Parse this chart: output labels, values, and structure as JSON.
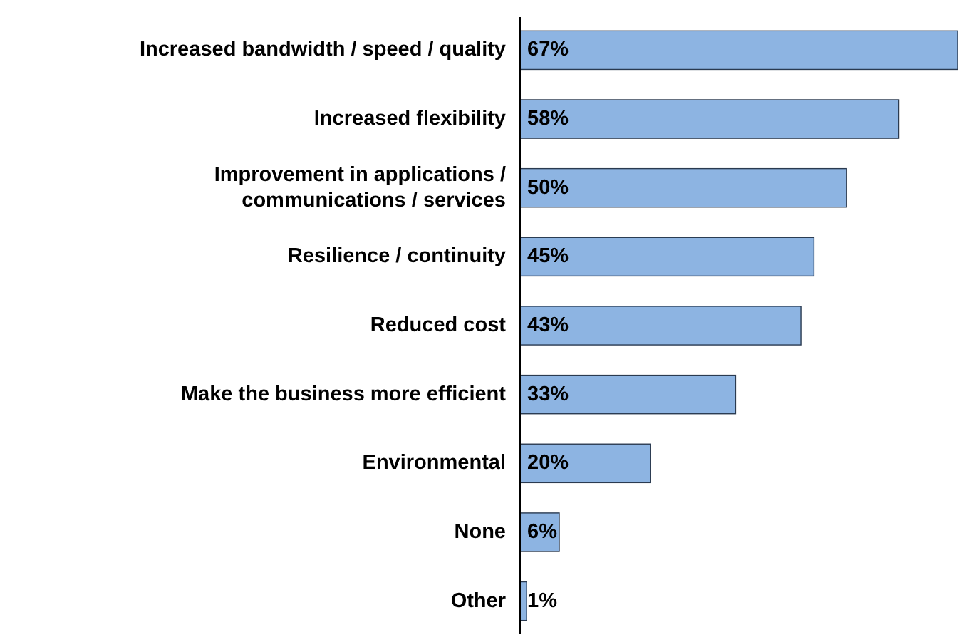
{
  "chart_data": {
    "type": "bar",
    "orientation": "horizontal",
    "categories": [
      "Increased bandwidth / speed / quality",
      "Increased flexibility",
      "Improvement in applications / communications / services",
      "Resilience / continuity",
      "Reduced cost",
      "Make the business more efficient",
      "Environmental",
      "None",
      "Other"
    ],
    "values": [
      67,
      58,
      50,
      45,
      43,
      33,
      20,
      6,
      1
    ],
    "value_labels": [
      "67%",
      "58%",
      "50%",
      "45%",
      "43%",
      "33%",
      "20%",
      "6%",
      "1%"
    ],
    "color": "#8db4e2"
  }
}
